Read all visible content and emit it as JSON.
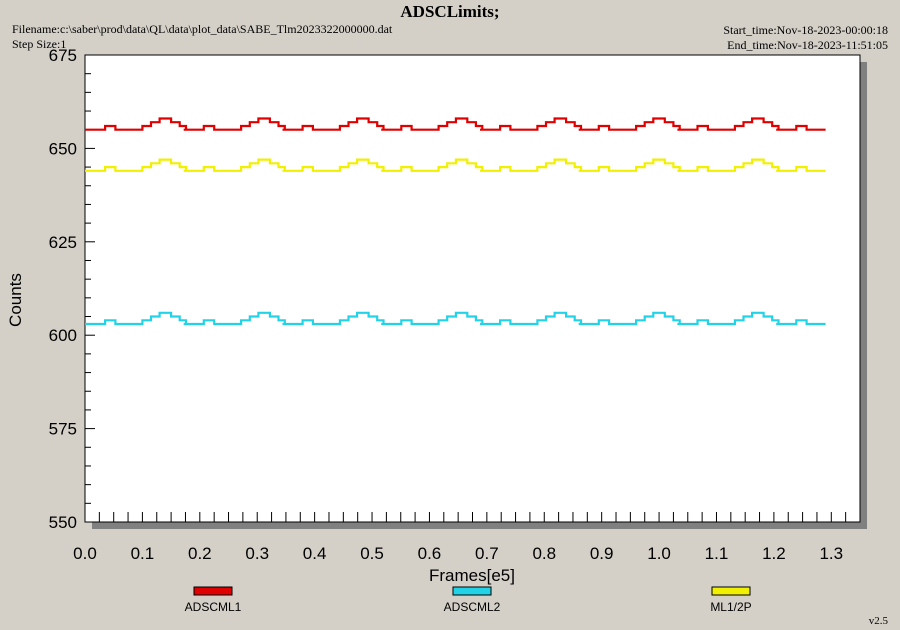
{
  "header": {
    "filename": "Filename:c:\\saber\\prod\\data\\QL\\data\\plot_data\\SABE_Tlm2023322000000.dat",
    "step_size": "Step Size:1",
    "start_time": "Start_time:Nov-18-2023-00:00:18",
    "end_time": "End_time:Nov-18-2023-11:51:05"
  },
  "footer": {
    "version": "v2.5"
  },
  "chart_data": {
    "type": "line",
    "title": "ADSCLimits;",
    "xlabel": "Frames[e5]",
    "ylabel": "Counts",
    "xlim": [
      0,
      1.35
    ],
    "ylim": [
      550,
      675
    ],
    "x_ticks": [
      "0.0",
      "0.1",
      "0.2",
      "0.3",
      "0.4",
      "0.5",
      "0.6",
      "0.7",
      "0.8",
      "0.9",
      "1.0",
      "1.1",
      "1.2",
      "1.3"
    ],
    "y_ticks": [
      "550",
      "575",
      "600",
      "625",
      "650",
      "675"
    ],
    "grid": false,
    "legend": "bottom",
    "x_end": 1.29,
    "cycle_length": 0.172,
    "series": [
      {
        "name": "ADSCML1",
        "color": "#e00000",
        "profile": [
          [
            0.0,
            655
          ],
          [
            0.035,
            656
          ],
          [
            0.053,
            655
          ],
          [
            0.1,
            656
          ],
          [
            0.115,
            657
          ],
          [
            0.13,
            658
          ],
          [
            0.15,
            657
          ],
          [
            0.165,
            656
          ],
          [
            0.176,
            655
          ]
        ]
      },
      {
        "name": "ADSCML2",
        "color": "#22d3e8",
        "profile": [
          [
            0.0,
            603
          ],
          [
            0.035,
            604
          ],
          [
            0.053,
            603
          ],
          [
            0.1,
            604
          ],
          [
            0.115,
            605
          ],
          [
            0.13,
            606
          ],
          [
            0.15,
            605
          ],
          [
            0.165,
            604
          ],
          [
            0.176,
            603
          ]
        ]
      },
      {
        "name": "ML1/2P",
        "color": "#f0f000",
        "profile": [
          [
            0.0,
            644
          ],
          [
            0.035,
            645
          ],
          [
            0.053,
            644
          ],
          [
            0.1,
            645
          ],
          [
            0.115,
            646
          ],
          [
            0.13,
            647
          ],
          [
            0.15,
            646
          ],
          [
            0.165,
            645
          ],
          [
            0.176,
            644
          ]
        ]
      }
    ]
  }
}
